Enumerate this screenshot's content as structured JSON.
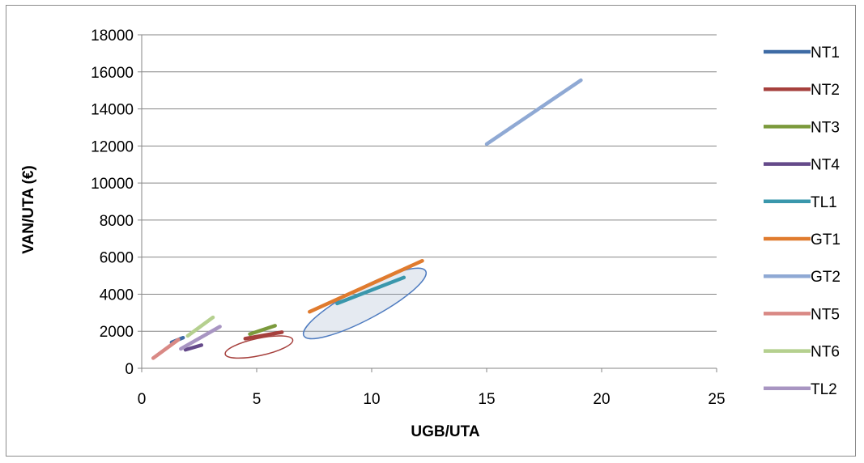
{
  "chart_data": {
    "type": "line",
    "title": "",
    "xlabel": "UGB/UTA",
    "ylabel": "VAN/UTA (€)",
    "xlim": [
      0,
      25
    ],
    "ylim": [
      0,
      18000
    ],
    "x_ticks": [
      0,
      5,
      10,
      15,
      20,
      25
    ],
    "y_ticks": [
      0,
      2000,
      4000,
      6000,
      8000,
      10000,
      12000,
      14000,
      16000,
      18000
    ],
    "grid": "horizontal",
    "legend_position": "right",
    "series": [
      {
        "name": "NT1",
        "color": "#3E6BA5",
        "points": [
          [
            1.3,
            1400
          ],
          [
            1.8,
            1650
          ]
        ]
      },
      {
        "name": "NT2",
        "color": "#A6403D",
        "points": [
          [
            4.5,
            1600
          ],
          [
            6.1,
            1950
          ]
        ]
      },
      {
        "name": "NT3",
        "color": "#7B9A3C",
        "points": [
          [
            4.7,
            1850
          ],
          [
            5.8,
            2300
          ]
        ]
      },
      {
        "name": "NT4",
        "color": "#654A8A",
        "points": [
          [
            1.9,
            1000
          ],
          [
            2.6,
            1250
          ]
        ]
      },
      {
        "name": "TL1",
        "color": "#3A97AC",
        "points": [
          [
            8.5,
            3500
          ],
          [
            11.4,
            4900
          ]
        ]
      },
      {
        "name": "GT1",
        "color": "#E07B2E",
        "points": [
          [
            7.3,
            3050
          ],
          [
            12.2,
            5800
          ]
        ]
      },
      {
        "name": "GT2",
        "color": "#8FA9D4",
        "points": [
          [
            15.0,
            12100
          ],
          [
            19.1,
            15550
          ]
        ]
      },
      {
        "name": "NT5",
        "color": "#D98985",
        "points": [
          [
            0.5,
            550
          ],
          [
            1.6,
            1550
          ]
        ]
      },
      {
        "name": "NT6",
        "color": "#B5D08F",
        "points": [
          [
            2.0,
            1750
          ],
          [
            3.1,
            2750
          ]
        ]
      },
      {
        "name": "TL2",
        "color": "#A895C2",
        "points": [
          [
            1.7,
            1050
          ],
          [
            3.4,
            2250
          ]
        ]
      }
    ],
    "ellipses": [
      {
        "center": [
          5.1,
          1150
        ],
        "rx_data": 1.5,
        "ry_data": 850,
        "rotation": -12,
        "stroke": "#A6403D",
        "fill": "none"
      },
      {
        "center": [
          9.7,
          3500
        ],
        "rx_data": 3.0,
        "ry_data": 1550,
        "rotation": -28,
        "stroke": "#4F7CC0",
        "fill": "rgba(150,170,200,0.25)"
      }
    ]
  }
}
